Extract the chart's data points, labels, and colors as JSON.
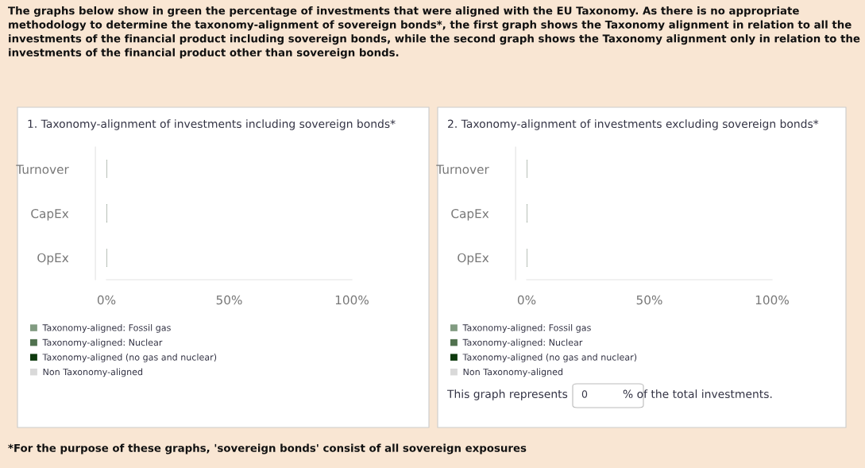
{
  "chart_data": [
    {
      "type": "bar",
      "orientation": "horizontal",
      "title": "1. Taxonomy-alignment of investments including sovereign bonds*",
      "categories": [
        "Turnover",
        "CapEx",
        "OpEx"
      ],
      "series": [
        {
          "name": "Taxonomy-aligned: Fossil gas",
          "color": "#819b81",
          "values": [
            0,
            0,
            0
          ]
        },
        {
          "name": "Taxonomy-aligned: Nuclear",
          "color": "#51724f",
          "values": [
            0,
            0,
            0
          ]
        },
        {
          "name": "Taxonomy-aligned (no gas and nuclear)",
          "color": "#0e3a0e",
          "values": [
            0,
            0,
            0
          ]
        },
        {
          "name": "Non Taxonomy-aligned",
          "color": "#d9d9d9",
          "values": [
            0,
            0,
            0
          ]
        }
      ],
      "xlim": [
        0,
        100
      ],
      "xticks": [
        {
          "value": 0,
          "label": "0%"
        },
        {
          "value": 50,
          "label": "50%"
        },
        {
          "value": 100,
          "label": "100%"
        }
      ],
      "legend": "bottom",
      "grid": false,
      "annotations": [
        "The graphs below show in green the percentage of investments that were aligned with the EU Taxonomy. As there is no appropriate methodology to determine the taxonomy-alignment of sovereign bonds*, the first graph shows the Taxonomy alignment in relation to all the investments of the financial product including sovereign bonds, while the second graph shows the Taxonomy alignment only in relation to the investments of the financial product other than sovereign bonds.",
        "*For the purpose of these graphs, 'sovereign bonds' consist of all sovereign exposures"
      ]
    },
    {
      "type": "bar",
      "orientation": "horizontal",
      "title": "2. Taxonomy-alignment of investments excluding sovereign bonds*",
      "categories": [
        "Turnover",
        "CapEx",
        "OpEx"
      ],
      "series": [
        {
          "name": "Taxonomy-aligned: Fossil gas",
          "color": "#819b81",
          "values": [
            0,
            0,
            0
          ]
        },
        {
          "name": "Taxonomy-aligned: Nuclear",
          "color": "#51724f",
          "values": [
            0,
            0,
            0
          ]
        },
        {
          "name": "Taxonomy-aligned (no gas and nuclear)",
          "color": "#0e3a0e",
          "values": [
            0,
            0,
            0
          ]
        },
        {
          "name": "Non Taxonomy-aligned",
          "color": "#d9d9d9",
          "values": [
            0,
            0,
            0
          ]
        }
      ],
      "xlim": [
        0,
        100
      ],
      "xticks": [
        {
          "value": 0,
          "label": "0%"
        },
        {
          "value": 50,
          "label": "50%"
        },
        {
          "value": 100,
          "label": "100%"
        }
      ],
      "legend": "bottom",
      "grid": false,
      "annotations": [
        "This graph represents",
        "0",
        "% of the total investments."
      ]
    }
  ]
}
